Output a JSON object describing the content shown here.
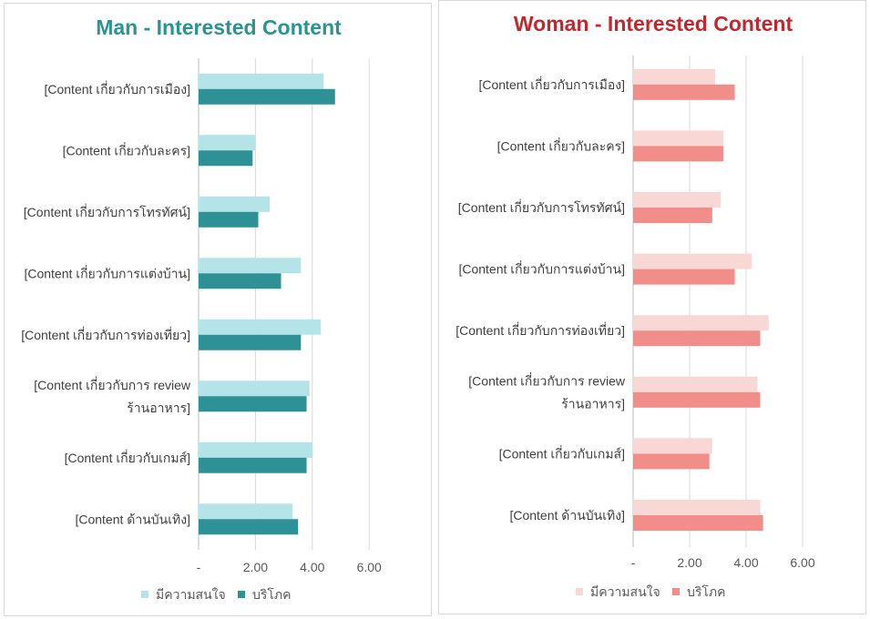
{
  "charts": [
    {
      "id": "man",
      "title": "Man - Interested Content",
      "title_color": "#2A9396",
      "colors": [
        "#B4E4E8",
        "#2E9196"
      ],
      "legend": [
        "มีความสนใจ",
        "บริโภค"
      ]
    },
    {
      "id": "woman",
      "title": "Woman - Interested Content",
      "title_color": "#C0282D",
      "colors": [
        "#F9D7D5",
        "#F28E89"
      ],
      "legend": [
        "มีความสนใจ",
        "บริโภค"
      ]
    }
  ],
  "chart_data": [
    {
      "type": "bar",
      "orientation": "horizontal",
      "title": "Man - Interested Content",
      "categories": [
        [
          "[Content เกี่ยวกับการเมือง]"
        ],
        [
          "[Content เกี่ยวกับละคร]"
        ],
        [
          "[Content เกี่ยวกับการโทรทัศน์]"
        ],
        [
          "[Content เกี่ยวกับการแต่งบ้าน]"
        ],
        [
          "[Content เกี่ยวกับการท่องเที่ยว]"
        ],
        [
          "[Content เกี่ยวกับการ review",
          "ร้านอาหาร]"
        ],
        [
          "[Content เกี่ยวกับเกมส์]"
        ],
        [
          "[Content ด้านบันเทิง]"
        ]
      ],
      "series": [
        {
          "name": "มีความสนใจ",
          "values": [
            4.4,
            2.0,
            2.5,
            3.6,
            4.3,
            3.9,
            4.0,
            3.3
          ]
        },
        {
          "name": "บริโภค",
          "values": [
            4.8,
            1.9,
            2.1,
            2.9,
            3.6,
            3.8,
            3.8,
            3.5
          ]
        }
      ],
      "xlim": [
        0,
        7
      ],
      "xticks": [
        "-",
        "2.00",
        "4.00",
        "6.00"
      ],
      "xtick_values": [
        0,
        2,
        4,
        6
      ],
      "grid": true,
      "legend_position": "bottom"
    },
    {
      "type": "bar",
      "orientation": "horizontal",
      "title": "Woman - Interested Content",
      "categories": [
        [
          "[Content เกี่ยวกับการเมือง]"
        ],
        [
          "[Content เกี่ยวกับละคร]"
        ],
        [
          "[Content เกี่ยวกับการโทรทัศน์]"
        ],
        [
          "[Content เกี่ยวกับการแต่งบ้าน]"
        ],
        [
          "[Content เกี่ยวกับการท่องเที่ยว]"
        ],
        [
          "[Content เกี่ยวกับการ review",
          "ร้านอาหาร]"
        ],
        [
          "[Content เกี่ยวกับเกมส์]"
        ],
        [
          "[Content ด้านบันเทิง]"
        ]
      ],
      "series": [
        {
          "name": "มีความสนใจ",
          "values": [
            2.9,
            3.2,
            3.1,
            4.2,
            4.8,
            4.4,
            2.8,
            4.5
          ]
        },
        {
          "name": "บริโภค",
          "values": [
            3.6,
            3.2,
            2.8,
            3.6,
            4.5,
            4.5,
            2.7,
            4.6
          ]
        }
      ],
      "xlim": [
        0,
        7
      ],
      "xticks": [
        "-",
        "2.00",
        "4.00",
        "6.00"
      ],
      "xtick_values": [
        0,
        2,
        4,
        6
      ],
      "grid": true,
      "legend_position": "bottom"
    }
  ]
}
